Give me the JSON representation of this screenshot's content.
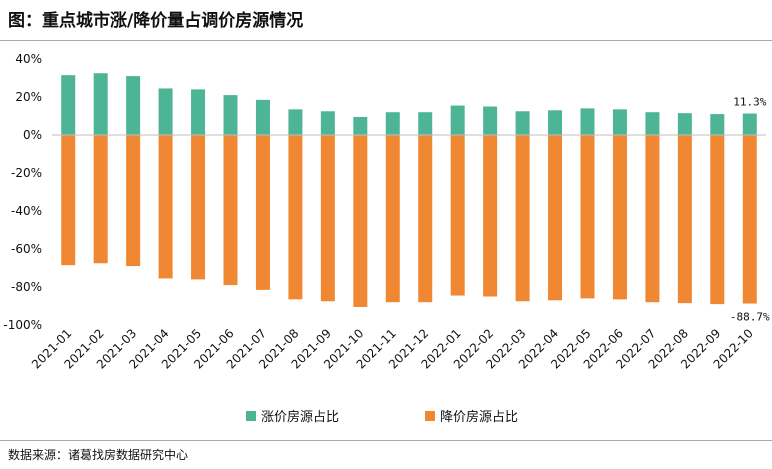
{
  "header": {
    "title": "图：重点城市涨/降价量占调价房源情况"
  },
  "footer": {
    "source": "数据来源：诸葛找房数据研究中心"
  },
  "colors": {
    "up": "#4db596",
    "down": "#f08732"
  },
  "chart_data": {
    "type": "bar",
    "title": "图：重点城市涨/降价量占调价房源情况",
    "xlabel": "",
    "ylabel": "",
    "ylim": [
      -100,
      40
    ],
    "yticks": [
      40,
      20,
      0,
      -20,
      -40,
      -60,
      -80,
      -100
    ],
    "ytick_labels": [
      "40%",
      "20%",
      "0%",
      "-20%",
      "-40%",
      "-60%",
      "-80%",
      "-100%"
    ],
    "grid": false,
    "legend_position": "bottom",
    "stacked": true,
    "categories": [
      "2021-01",
      "2021-02",
      "2021-03",
      "2021-04",
      "2021-05",
      "2021-06",
      "2021-07",
      "2021-08",
      "2021-09",
      "2021-10",
      "2021-11",
      "2021-12",
      "2022-01",
      "2022-02",
      "2022-03",
      "2022-04",
      "2022-05",
      "2022-06",
      "2022-07",
      "2022-08",
      "2022-09",
      "2022-10"
    ],
    "series": [
      {
        "name": "涨价房源占比",
        "color": "#4db596",
        "values": [
          31.5,
          32.5,
          31,
          24.5,
          24,
          21,
          18.5,
          13.5,
          12.5,
          9.5,
          12,
          12,
          15.5,
          15,
          12.5,
          13,
          14,
          13.5,
          12,
          11.5,
          11,
          11.3
        ]
      },
      {
        "name": "降价房源占比",
        "color": "#f08732",
        "values": [
          -68.5,
          -67.5,
          -69,
          -75.5,
          -76,
          -79,
          -81.5,
          -86.5,
          -87.5,
          -90.5,
          -88,
          -88,
          -84.5,
          -85,
          -87.5,
          -87,
          -86,
          -86.5,
          -88,
          -88.5,
          -89,
          -88.7
        ]
      }
    ],
    "data_labels": [
      {
        "series": 0,
        "index": 21,
        "text": "11.3%"
      },
      {
        "series": 1,
        "index": 21,
        "text": "-88.7%"
      }
    ]
  }
}
